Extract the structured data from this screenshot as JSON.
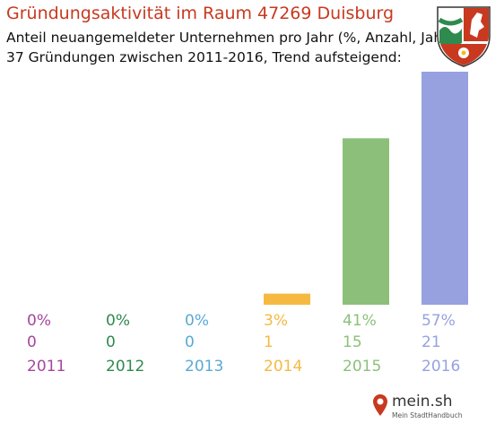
{
  "header": {
    "title": "Gründungsaktivität im Raum 47269 Duisburg",
    "subtitle_line1": "Anteil neuangemeldeter Unternehmen pro Jahr (%, Anzahl, Jahr)",
    "subtitle_line2": "37 Gründungen zwischen 2011-2016, Trend aufsteigend:"
  },
  "chart_data": {
    "type": "bar",
    "categories": [
      "2011",
      "2012",
      "2013",
      "2014",
      "2015",
      "2016"
    ],
    "values": [
      0,
      0,
      0,
      1,
      15,
      21
    ],
    "percent_labels": [
      "0%",
      "0%",
      "0%",
      "3%",
      "41%",
      "57%"
    ],
    "count_labels": [
      "0",
      "0",
      "0",
      "1",
      "15",
      "21"
    ],
    "year_labels": [
      "2011",
      "2012",
      "2013",
      "2014",
      "2015",
      "2016"
    ],
    "colors": [
      "#a6469c",
      "#2e8a4e",
      "#5aa9d6",
      "#f5b942",
      "#8cc07a",
      "#97a1e0"
    ],
    "total": 37,
    "grid": false,
    "legend": "none"
  },
  "logo": {
    "main_text": "mein.sh",
    "sub_text": "Mein StadtHandbuch",
    "brand_color": "#c8391f"
  },
  "crest": {
    "icon": "nrw-coat-of-arms-icon",
    "colors": [
      "#ffffff",
      "#2e8a4e",
      "#c8391f"
    ]
  }
}
